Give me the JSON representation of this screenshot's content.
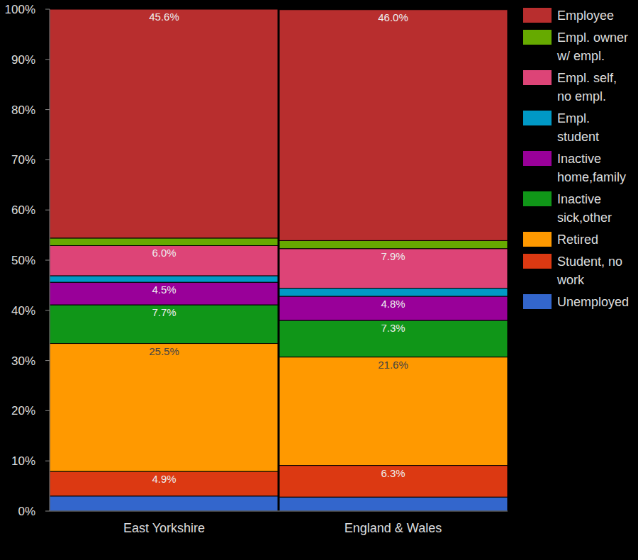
{
  "chart_data": {
    "type": "bar",
    "stacked": true,
    "data_labels": true,
    "grid": false,
    "legend": "right",
    "categories": [
      "East Yorkshire",
      "England & Wales"
    ],
    "ylim": [
      0,
      100
    ],
    "yticks": [
      {
        "value": 0,
        "label": "0%"
      },
      {
        "value": 10,
        "label": "10%"
      },
      {
        "value": 20,
        "label": "20%"
      },
      {
        "value": 30,
        "label": "30%"
      },
      {
        "value": 40,
        "label": "40%"
      },
      {
        "value": 50,
        "label": "50%"
      },
      {
        "value": 60,
        "label": "60%"
      },
      {
        "value": 70,
        "label": "70%"
      },
      {
        "value": 80,
        "label": "80%"
      },
      {
        "value": 90,
        "label": "90%"
      },
      {
        "value": 100,
        "label": "100%"
      }
    ],
    "series": [
      {
        "name": "Employee",
        "color": "#b82e2e",
        "values": [
          45.6,
          46.0
        ],
        "value_labels": [
          "45.6%",
          "46.0%"
        ]
      },
      {
        "name": "Empl. owner w/ empl.",
        "color": "#66aa00",
        "values": [
          1.5,
          1.6
        ]
      },
      {
        "name": "Empl. self, no empl.",
        "color": "#dd4477",
        "values": [
          6.0,
          7.9
        ],
        "value_labels": [
          "6.0%",
          "7.9%"
        ]
      },
      {
        "name": "Empl. student",
        "color": "#0099c6",
        "values": [
          1.3,
          1.6
        ]
      },
      {
        "name": "Inactive home,family",
        "color": "#990099",
        "values": [
          4.5,
          4.8
        ],
        "value_labels": [
          "4.5%",
          "4.8%"
        ]
      },
      {
        "name": "Inactive sick,other",
        "color": "#109618",
        "values": [
          7.7,
          7.3
        ],
        "value_labels": [
          "7.7%",
          "7.3%"
        ]
      },
      {
        "name": "Retired",
        "color": "#ff9900",
        "values": [
          25.5,
          21.6
        ],
        "value_labels": [
          "25.5%",
          "21.6%"
        ]
      },
      {
        "name": "Student, no work",
        "color": "#dc3912",
        "values": [
          4.9,
          6.3
        ],
        "value_labels": [
          "4.9%",
          "6.3%"
        ]
      },
      {
        "name": "Unemployed",
        "color": "#3366cc",
        "values": [
          3.0,
          2.8
        ]
      }
    ]
  }
}
